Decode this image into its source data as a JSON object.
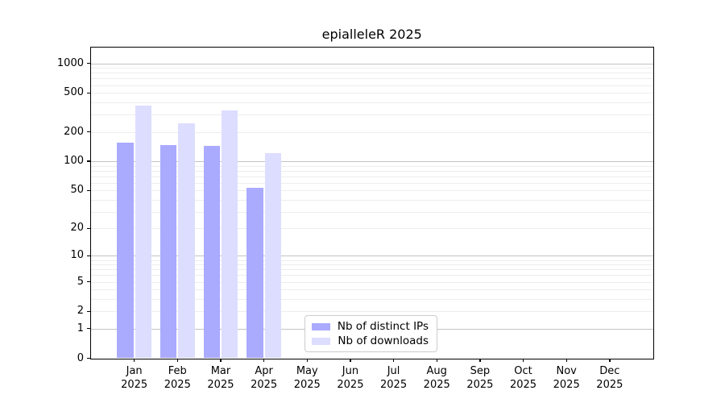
{
  "chart_data": {
    "type": "bar",
    "title": "epialleleR 2025",
    "year": "2025",
    "months": [
      "Jan",
      "Feb",
      "Mar",
      "Apr",
      "May",
      "Jun",
      "Jul",
      "Aug",
      "Sep",
      "Oct",
      "Nov",
      "Dec"
    ],
    "series": [
      {
        "name": "Nb of distinct IPs",
        "color": "#aaaaff",
        "values": [
          156,
          145,
          143,
          53,
          0,
          0,
          0,
          0,
          0,
          0,
          0,
          0
        ]
      },
      {
        "name": "Nb of downloads",
        "color": "#ddddff",
        "values": [
          370,
          244,
          333,
          121,
          0,
          0,
          0,
          0,
          0,
          0,
          0,
          0
        ]
      }
    ],
    "yscale": "log1p",
    "yticks": [
      0,
      1,
      2,
      5,
      10,
      20,
      50,
      100,
      200,
      500,
      1000
    ],
    "ylim": [
      0,
      1430
    ],
    "grid": true,
    "legend_position": "bottom-center",
    "colors": {
      "major_grid": "#c3c3c3",
      "minor_grid": "#ededed",
      "axis": "#000000",
      "background": "#ffffff"
    }
  }
}
